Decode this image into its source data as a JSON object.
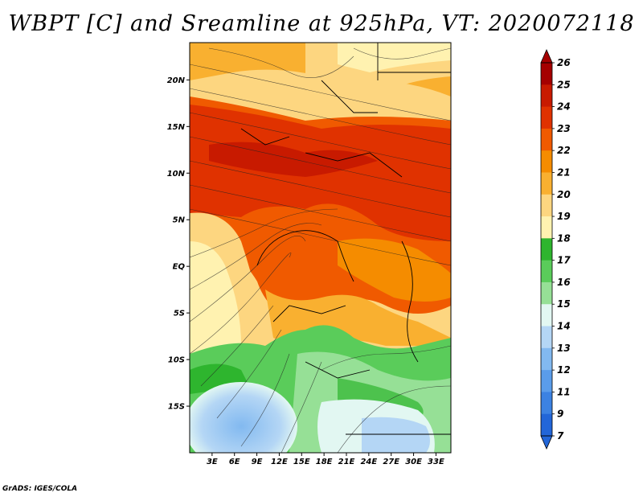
{
  "title": "WBPT [C] and Sreamline at 925hPa, VT: 2020072118",
  "footer": "GrADS: IGES/COLA",
  "map": {
    "lon_range": [
      0,
      35
    ],
    "lat_range": [
      -20,
      24
    ],
    "lon_ticks": [
      "3E",
      "6E",
      "9E",
      "12E",
      "15E",
      "18E",
      "21E",
      "24E",
      "27E",
      "30E",
      "33E"
    ],
    "lat_ticks": [
      "20N",
      "15N",
      "10N",
      "5N",
      "EQ",
      "5S",
      "10S",
      "15S"
    ],
    "lon_tick_values": [
      3,
      6,
      9,
      12,
      15,
      18,
      21,
      24,
      27,
      30,
      33
    ],
    "lat_tick_values": [
      20,
      15,
      10,
      5,
      0,
      -5,
      -10,
      -15
    ]
  },
  "colorbar": {
    "labels": [
      "26",
      "25",
      "24",
      "23",
      "22",
      "21",
      "20",
      "19",
      "18",
      "17",
      "16",
      "15",
      "14",
      "13",
      "12",
      "11",
      "9",
      "7"
    ],
    "colors": [
      "#a50000",
      "#c81a00",
      "#e03200",
      "#f05a00",
      "#f58c00",
      "#f9b030",
      "#fdd680",
      "#fff2b0",
      "#2eb52e",
      "#5acc5a",
      "#96e096",
      "#e2f7f2",
      "#b4d6f5",
      "#82b9f0",
      "#5a9cea",
      "#3c82e2",
      "#2266d8"
    ]
  }
}
